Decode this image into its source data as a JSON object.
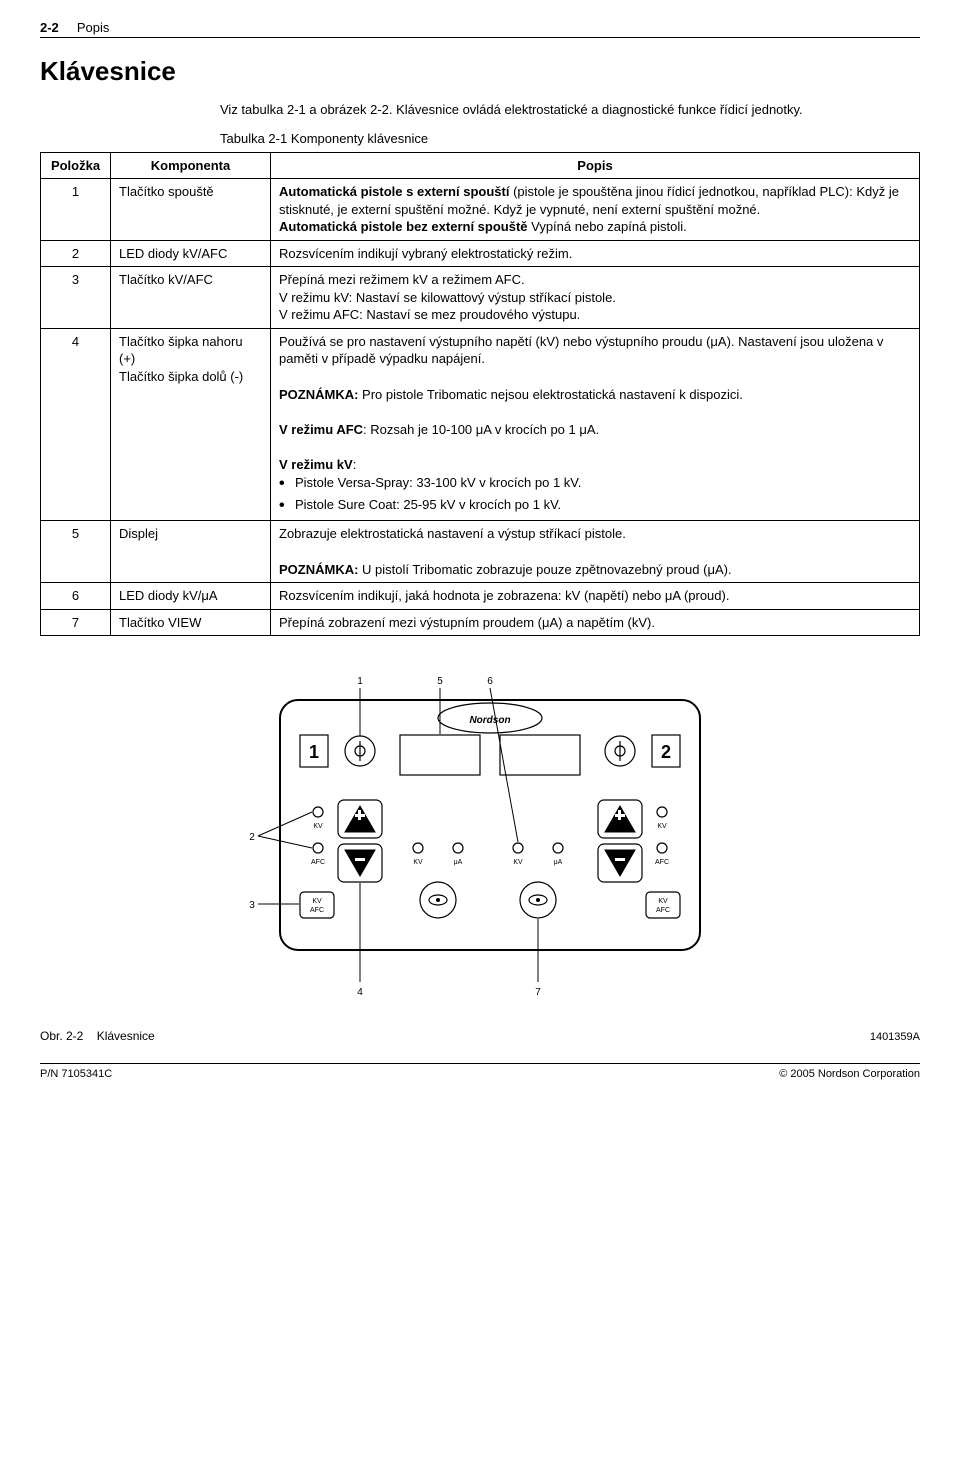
{
  "header": {
    "page_num": "2-2",
    "section": "Popis"
  },
  "title": "Klávesnice",
  "intro": "Viz tabulka 2-1 a obrázek 2-2.  Klávesnice ovládá elektrostatické a diagnostické funkce řídicí jednotky.",
  "table_caption": "Tabulka 2-1  Komponenty klávesnice",
  "table": {
    "headers": [
      "Položka",
      "Komponenta",
      "Popis"
    ],
    "rows": [
      {
        "idx": "1",
        "comp": "Tlačítko spouště",
        "desc_html": "<span class=\"b\">Automatická pistole s externí spouští</span> (pistole je spouštěna jinou řídicí jednotkou, například PLC):  Když je stisknuté, je externí spuštění možné. Když je vypnuté, není externí spuštění možné.<br><span class=\"b\">Automatická pistole bez externí spouště</span> Vypíná nebo zapíná pistoli."
      },
      {
        "idx": "2",
        "comp": "LED diody kV/AFC",
        "desc_html": "Rozsvícením indikují vybraný elektrostatický režim."
      },
      {
        "idx": "3",
        "comp": "Tlačítko kV/AFC",
        "desc_html": "Přepíná mezi režimem kV a režimem AFC.<br>V režimu kV: Nastaví se kilowattový výstup stříkací pistole.<br>V režimu AFC: Nastaví se mez proudového výstupu."
      },
      {
        "idx": "4",
        "comp": "Tlačítko šipka nahoru (+)<br>Tlačítko šipka dolů (-)",
        "desc_html": "Používá se pro nastavení výstupního napětí (kV) nebo výstupního proudu (μA).  Nastavení jsou uložena v paměti v případě výpadku napájení.<br><br><span class=\"b\">POZNÁMKA:</span>  Pro pistole Tribomatic nejsou elektrostatická nastavení k dispozici.<br><br><span class=\"b\">V režimu AFC</span>:  Rozsah je 10-100 μA v krocích po 1 μA.<br><br><span class=\"b\">V režimu kV</span>:<ul class=\"bullets\"><li>Pistole Versa‑Spray: 33-100 kV v krocích po 1 kV.</li><li>Pistole Sure Coat: 25-95 kV v krocích po 1 kV.</li></ul>"
      },
      {
        "idx": "5",
        "comp": "Displej",
        "desc_html": "Zobrazuje elektrostatická nastavení a výstup stříkací pistole.<br><br><span class=\"b\">POZNÁMKA:</span>  U pistolí Tribomatic zobrazuje pouze zpětnovazebný proud (μA)."
      },
      {
        "idx": "6",
        "comp": "LED diody kV/μA",
        "desc_html": "Rozsvícením indikují, jaká hodnota je zobrazena: kV (napětí) nebo μA (proud)."
      },
      {
        "idx": "7",
        "comp": "Tlačítko VIEW",
        "desc_html": "Přepíná zobrazení mezi výstupním proudem (μA) a napětím (kV)."
      }
    ]
  },
  "figure": {
    "callouts": [
      "1",
      "2",
      "3",
      "4",
      "5",
      "6",
      "7"
    ],
    "logo": "Nordson",
    "panel_left_num": "1",
    "panel_right_num": "2",
    "labels": {
      "kv": "KV",
      "afc": "AFC",
      "ua": "μA",
      "kvafc": "KV\nAFC"
    },
    "fig_num": "Obr. 2-2",
    "fig_title": "Klávesnice",
    "drawing_no": "1401359A"
  },
  "footer": {
    "left": "P/N 7105341C",
    "right": "© 2005 Nordson Corporation"
  }
}
